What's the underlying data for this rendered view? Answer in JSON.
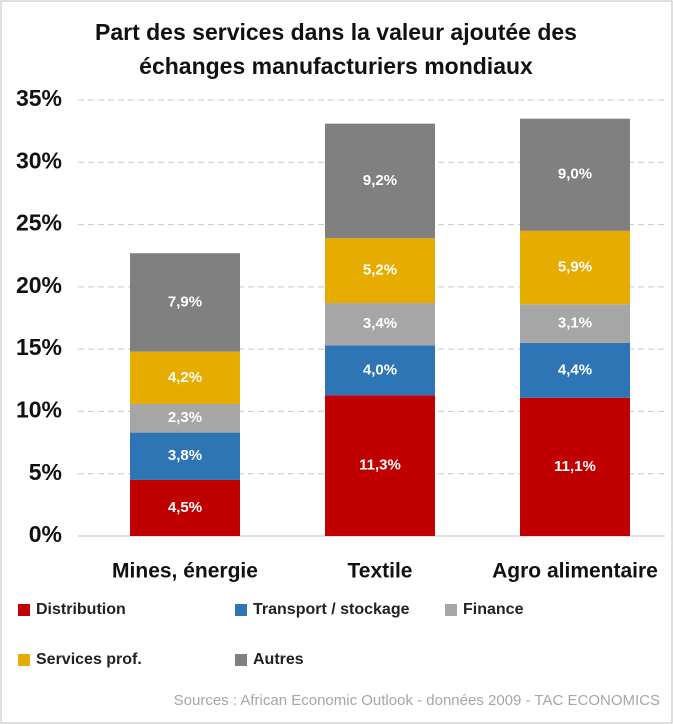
{
  "chart_data": {
    "type": "stacked_bar",
    "title": [
      "Part des services dans la valeur ajoutée des",
      "échanges manufacturiers  mondiaux"
    ],
    "categories": [
      "Mines, énergie",
      "Textile",
      "Agro alimentaire"
    ],
    "series": [
      {
        "name": "Distribution",
        "color": "#c00000",
        "values": [
          4.5,
          11.3,
          11.1
        ],
        "value_labels": [
          "4,5%",
          "11,3%",
          "11,1%"
        ]
      },
      {
        "name": "Transport / stockage",
        "color": "#2e75b6",
        "values": [
          3.8,
          4.0,
          4.4
        ],
        "value_labels": [
          "3,8%",
          "4,0%",
          "4,4%"
        ]
      },
      {
        "name": "Finance",
        "color": "#a6a6a6",
        "values": [
          2.3,
          3.4,
          3.1
        ],
        "value_labels": [
          "2,3%",
          "3,4%",
          "3,1%"
        ]
      },
      {
        "name": "Services prof.",
        "color": "#e6ac00",
        "values": [
          4.2,
          5.2,
          5.9
        ],
        "value_labels": [
          "4,2%",
          "5,2%",
          "5,9%"
        ]
      },
      {
        "name": "Autres",
        "color": "#808080",
        "values": [
          7.9,
          9.2,
          9.0
        ],
        "value_labels": [
          "7,9%",
          "9,2%",
          "9,0%"
        ]
      }
    ],
    "ylim": [
      0,
      35
    ],
    "yticks": [
      {
        "value": 0,
        "label": "0%"
      },
      {
        "value": 5,
        "label": "5%"
      },
      {
        "value": 10,
        "label": "10%"
      },
      {
        "value": 15,
        "label": "15%"
      },
      {
        "value": 20,
        "label": "20%"
      },
      {
        "value": 25,
        "label": "25%"
      },
      {
        "value": 30,
        "label": "30%"
      },
      {
        "value": 35,
        "label": "35%"
      }
    ],
    "grid": true,
    "legend": "bottom",
    "source": "Sources :  African Economic Outlook - données 2009 - TAC ECONOMICS"
  }
}
